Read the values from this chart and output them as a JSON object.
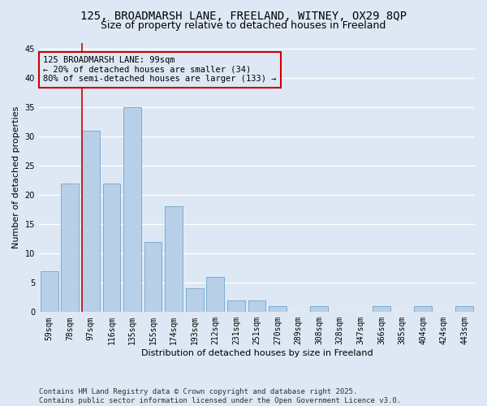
{
  "title1": "125, BROADMARSH LANE, FREELAND, WITNEY, OX29 8QP",
  "title2": "Size of property relative to detached houses in Freeland",
  "xlabel": "Distribution of detached houses by size in Freeland",
  "ylabel": "Number of detached properties",
  "categories": [
    "59sqm",
    "78sqm",
    "97sqm",
    "116sqm",
    "135sqm",
    "155sqm",
    "174sqm",
    "193sqm",
    "212sqm",
    "231sqm",
    "251sqm",
    "270sqm",
    "289sqm",
    "308sqm",
    "328sqm",
    "347sqm",
    "366sqm",
    "385sqm",
    "404sqm",
    "424sqm",
    "443sqm"
  ],
  "values": [
    7,
    22,
    31,
    22,
    35,
    12,
    18,
    4,
    6,
    2,
    2,
    1,
    0,
    1,
    0,
    0,
    1,
    0,
    1,
    0,
    1
  ],
  "bar_color": "#b8cfe8",
  "bar_edge_color": "#7aadd4",
  "background_color": "#dde8f4",
  "grid_color": "#ffffff",
  "annotation_box_color": "#cc0000",
  "annotation_line1": "125 BROADMARSH LANE: 99sqm",
  "annotation_line2": "← 20% of detached houses are smaller (34)",
  "annotation_line3": "80% of semi-detached houses are larger (133) →",
  "red_line_x": 2.0,
  "ylim": [
    0,
    46
  ],
  "yticks": [
    0,
    5,
    10,
    15,
    20,
    25,
    30,
    35,
    40,
    45
  ],
  "footer": "Contains HM Land Registry data © Crown copyright and database right 2025.\nContains public sector information licensed under the Open Government Licence v3.0.",
  "title_fontsize": 10,
  "subtitle_fontsize": 9,
  "axis_label_fontsize": 8,
  "tick_fontsize": 7,
  "annotation_fontsize": 7.5,
  "footer_fontsize": 6.5
}
